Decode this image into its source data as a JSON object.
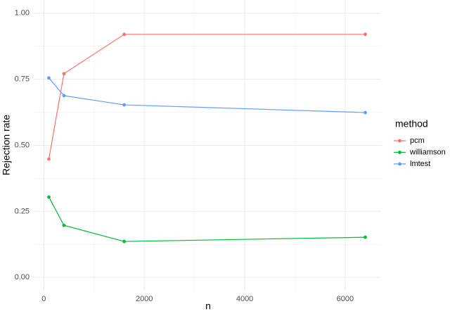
{
  "chart_data": {
    "type": "line",
    "x_label": "n",
    "y_label": "Rejection rate",
    "legend_title": "method",
    "x": [
      100,
      400,
      1600,
      6400
    ],
    "series": [
      {
        "name": "pcm",
        "color": "#F8766D",
        "values": [
          0.448,
          0.771,
          0.92,
          0.92
        ]
      },
      {
        "name": "williamson",
        "color": "#00BA38",
        "values": [
          0.304,
          0.197,
          0.136,
          0.152
        ]
      },
      {
        "name": "lmtest",
        "color": "#619CFF",
        "values": [
          0.755,
          0.688,
          0.653,
          0.624
        ]
      }
    ],
    "xlim": [
      -215,
      6715
    ],
    "ylim": [
      -0.05,
      1.05
    ],
    "xticks": [
      0,
      2000,
      4000,
      6000
    ],
    "yticks": [
      {
        "value": 0,
        "label": "0.00"
      },
      {
        "value": 0.25,
        "label": "0.25"
      },
      {
        "value": 0.5,
        "label": "0.50"
      },
      {
        "value": 0.75,
        "label": "0.75"
      },
      {
        "value": 1,
        "label": "1.00"
      }
    ],
    "x_minor_ticks": [
      1000,
      3000,
      5000
    ],
    "y_minor_ticks": [
      0.125,
      0.375,
      0.625,
      0.875
    ],
    "grid": true,
    "legend_position": "right"
  }
}
